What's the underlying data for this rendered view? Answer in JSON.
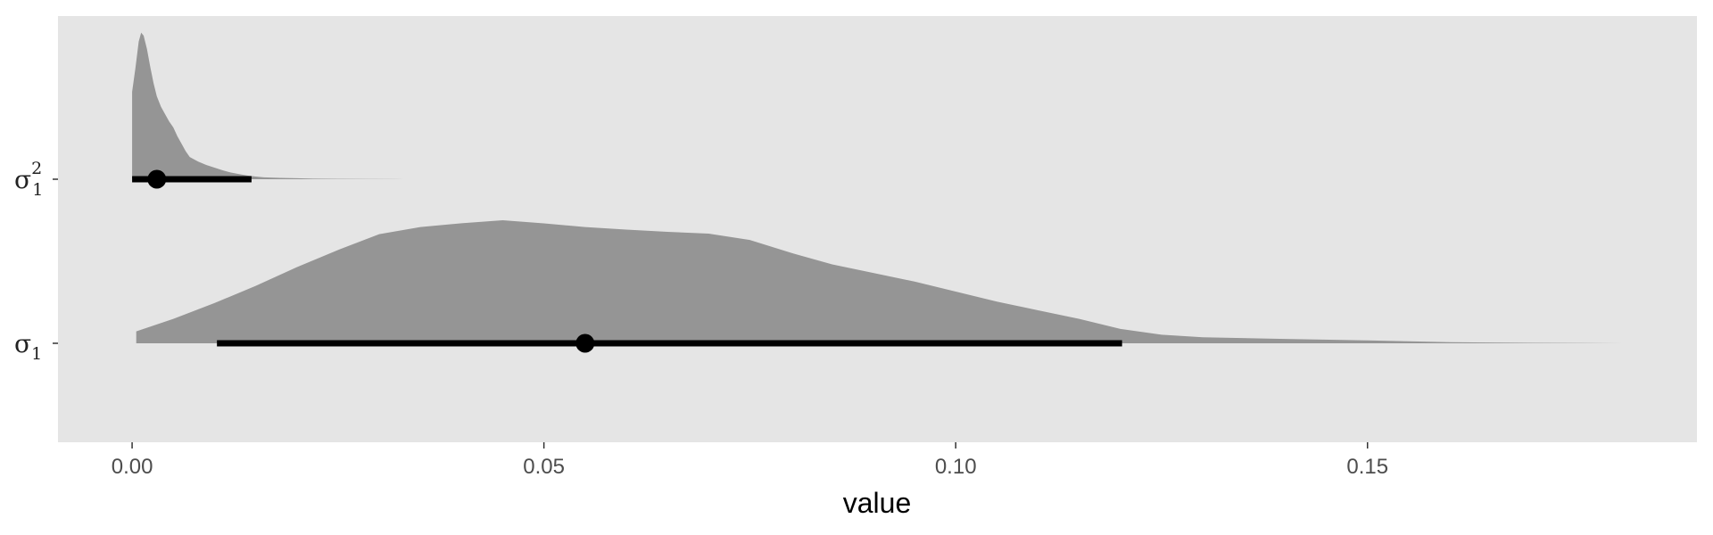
{
  "chart_data": {
    "type": "area",
    "title": "",
    "xlabel": "value",
    "ylabel": "",
    "xlim": [
      -0.009,
      0.19
    ],
    "x_ticks": [
      0.0,
      0.05,
      0.1,
      0.15
    ],
    "x_tick_labels": [
      "0.00",
      "0.05",
      "0.10",
      "0.15"
    ],
    "grid": false,
    "colors": {
      "panel": "#e5e5e5",
      "density_fill": "#959595",
      "interval": "#000000",
      "point": "#000000"
    },
    "series": [
      {
        "label_base": "σ",
        "label_sub": "1",
        "label_sup": "2",
        "point": 0.003,
        "interval": [
          0.0,
          0.0145
        ],
        "density": [
          [
            0.0,
            0.59
          ],
          [
            0.0004,
            0.75
          ],
          [
            0.0008,
            0.93
          ],
          [
            0.0011,
            0.99
          ],
          [
            0.0014,
            0.97
          ],
          [
            0.0018,
            0.88
          ],
          [
            0.0022,
            0.76
          ],
          [
            0.0026,
            0.65
          ],
          [
            0.003,
            0.56
          ],
          [
            0.0035,
            0.49
          ],
          [
            0.004,
            0.44
          ],
          [
            0.0045,
            0.39
          ],
          [
            0.005,
            0.35
          ],
          [
            0.0055,
            0.29
          ],
          [
            0.006,
            0.24
          ],
          [
            0.0065,
            0.19
          ],
          [
            0.007,
            0.15
          ],
          [
            0.008,
            0.12
          ],
          [
            0.009,
            0.096
          ],
          [
            0.01,
            0.078
          ],
          [
            0.011,
            0.06
          ],
          [
            0.012,
            0.045
          ],
          [
            0.013,
            0.035
          ],
          [
            0.014,
            0.025
          ],
          [
            0.015,
            0.018
          ],
          [
            0.016,
            0.013
          ],
          [
            0.018,
            0.009
          ],
          [
            0.02,
            0.0065
          ],
          [
            0.022,
            0.004
          ],
          [
            0.025,
            0.0025
          ],
          [
            0.028,
            0.0012
          ],
          [
            0.032,
            0.0005
          ],
          [
            0.033,
            0.0
          ]
        ]
      },
      {
        "label_base": "σ",
        "label_sub": "1",
        "label_sup": "",
        "point": 0.055,
        "interval": [
          0.0103,
          0.1202
        ],
        "density": [
          [
            0.0005,
            0.083
          ],
          [
            0.005,
            0.17
          ],
          [
            0.01,
            0.28
          ],
          [
            0.015,
            0.4
          ],
          [
            0.02,
            0.53
          ],
          [
            0.025,
            0.65
          ],
          [
            0.03,
            0.76
          ],
          [
            0.035,
            0.81
          ],
          [
            0.04,
            0.836
          ],
          [
            0.045,
            0.857
          ],
          [
            0.05,
            0.835
          ],
          [
            0.055,
            0.81
          ],
          [
            0.06,
            0.792
          ],
          [
            0.065,
            0.776
          ],
          [
            0.07,
            0.764
          ],
          [
            0.075,
            0.72
          ],
          [
            0.08,
            0.63
          ],
          [
            0.085,
            0.55
          ],
          [
            0.09,
            0.49
          ],
          [
            0.095,
            0.43
          ],
          [
            0.1,
            0.36
          ],
          [
            0.105,
            0.29
          ],
          [
            0.11,
            0.23
          ],
          [
            0.115,
            0.17
          ],
          [
            0.12,
            0.1
          ],
          [
            0.125,
            0.06
          ],
          [
            0.13,
            0.042
          ],
          [
            0.14,
            0.03
          ],
          [
            0.15,
            0.02
          ],
          [
            0.16,
            0.008
          ],
          [
            0.17,
            0.003
          ],
          [
            0.181,
            0.0
          ]
        ]
      }
    ]
  }
}
